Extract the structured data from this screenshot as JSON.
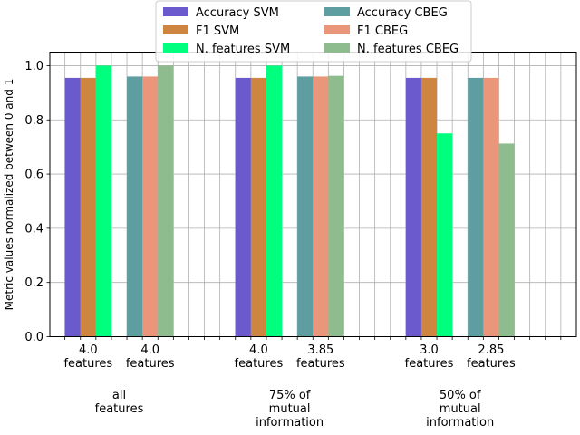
{
  "chart_data": {
    "type": "bar",
    "ylabel": "Metric values normalized between 0 and 1",
    "ylim": [
      0,
      1.05
    ],
    "yticks": [
      0.0,
      0.2,
      0.4,
      0.6,
      0.8,
      1.0
    ],
    "ytick_labels": [
      "0.0",
      "0.2",
      "0.4",
      "0.6",
      "0.8",
      "1.0"
    ],
    "grid": true,
    "legend_position": "top-center",
    "groups": [
      {
        "label": "all\nfeatures",
        "svm_label": "4.0\nfeatures",
        "cbeg_label": "4.0\nfeatures",
        "svm": {
          "accuracy": 0.955,
          "f1": 0.955,
          "n_features": 1.0
        },
        "cbeg": {
          "accuracy": 0.96,
          "f1": 0.96,
          "n_features": 1.0
        }
      },
      {
        "label": "75% of\nmutual\ninformation",
        "svm_label": "4.0\nfeatures",
        "cbeg_label": "3.85\nfeatures",
        "svm": {
          "accuracy": 0.955,
          "f1": 0.955,
          "n_features": 1.0
        },
        "cbeg": {
          "accuracy": 0.96,
          "f1": 0.96,
          "n_features": 0.9625
        }
      },
      {
        "label": "50% of\nmutual\ninformation",
        "svm_label": "3.0\nfeatures",
        "cbeg_label": "2.85\nfeatures",
        "svm": {
          "accuracy": 0.955,
          "f1": 0.955,
          "n_features": 0.75
        },
        "cbeg": {
          "accuracy": 0.955,
          "f1": 0.955,
          "n_features": 0.7125
        }
      }
    ],
    "series": [
      {
        "name": "Accuracy SVM",
        "model": "svm",
        "metric": "accuracy",
        "color": "#6a5acd"
      },
      {
        "name": "F1 SVM",
        "model": "svm",
        "metric": "f1",
        "color": "#cd853f"
      },
      {
        "name": "N. features SVM",
        "model": "svm",
        "metric": "n_features",
        "color": "#00ff7f"
      },
      {
        "name": "Accuracy CBEG",
        "model": "cbeg",
        "metric": "accuracy",
        "color": "#5f9ea0"
      },
      {
        "name": "F1 CBEG",
        "model": "cbeg",
        "metric": "f1",
        "color": "#e9967a"
      },
      {
        "name": "N. features CBEG",
        "model": "cbeg",
        "metric": "n_features",
        "color": "#8fbc8f"
      }
    ]
  }
}
